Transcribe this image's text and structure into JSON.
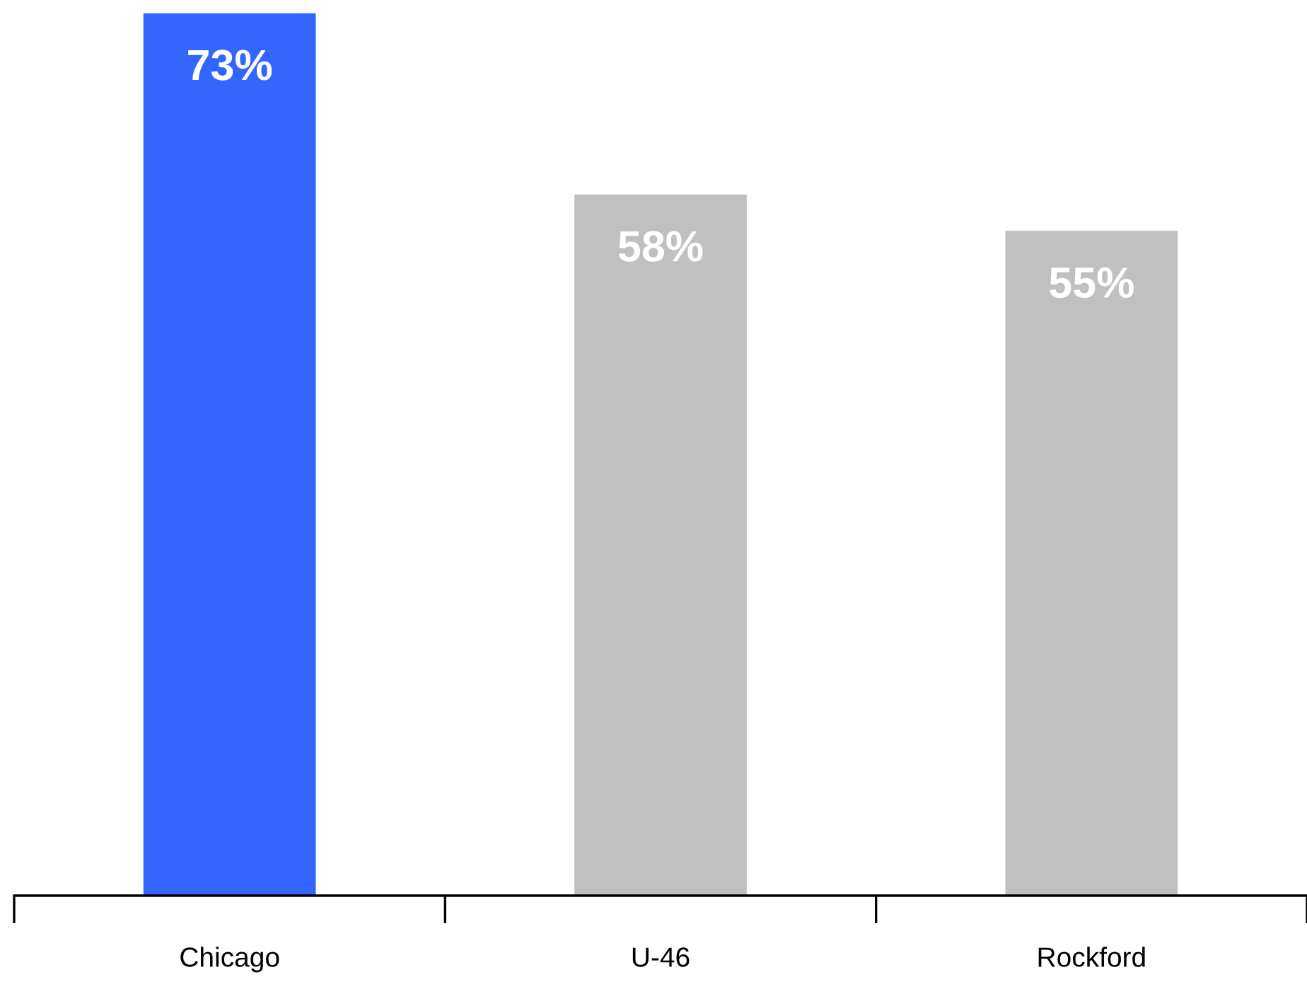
{
  "chart_data": {
    "type": "bar",
    "categories": [
      "Chicago",
      "U-46",
      "Rockford"
    ],
    "values": [
      73,
      58,
      55
    ],
    "colors": [
      "#3366ff",
      "#c0c0c0",
      "#c0c0c0"
    ],
    "value_labels": [
      "73%",
      "58%",
      "55%"
    ],
    "grid": false,
    "legend": false
  }
}
